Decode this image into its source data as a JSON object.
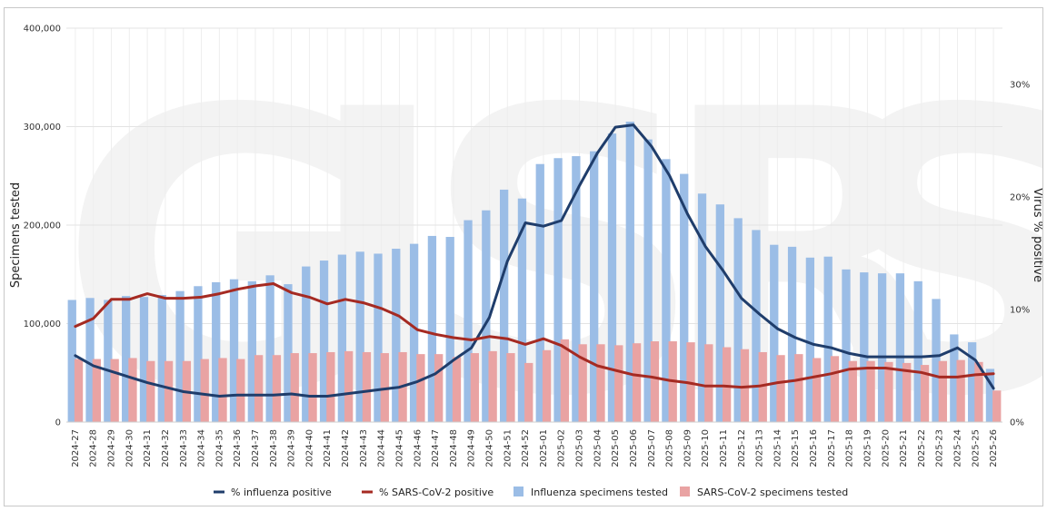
{
  "chart_data": {
    "type": "bar",
    "title": "",
    "ylabel": "Specimens tested",
    "y2label": "Virus % positive",
    "ylim": [
      0,
      400000
    ],
    "y2lim": [
      0,
      35
    ],
    "y_ticks": [
      "0",
      "100,000",
      "200,000",
      "300,000",
      "400,000"
    ],
    "y2_ticks": [
      "0%",
      "10%",
      "20%",
      "30%"
    ],
    "grid": true,
    "legend_position": "bottom",
    "categories": [
      "2024-27",
      "2024-28",
      "2024-29",
      "2024-30",
      "2024-31",
      "2024-32",
      "2024-33",
      "2024-34",
      "2024-35",
      "2024-36",
      "2024-37",
      "2024-38",
      "2024-39",
      "2024-40",
      "2024-41",
      "2024-42",
      "2024-43",
      "2024-44",
      "2024-45",
      "2024-46",
      "2024-47",
      "2024-48",
      "2024-49",
      "2024-50",
      "2024-51",
      "2024-52",
      "2025-01",
      "2025-02",
      "2025-03",
      "2025-04",
      "2025-05",
      "2025-06",
      "2025-07",
      "2025-08",
      "2025-09",
      "2025-10",
      "2025-11",
      "2025-12",
      "2025-13",
      "2025-14",
      "2025-15",
      "2025-16",
      "2025-17",
      "2025-18",
      "2025-19",
      "2025-20",
      "2025-21",
      "2025-22",
      "2025-23",
      "2025-24",
      "2025-25",
      "2025-26"
    ],
    "series": [
      {
        "name": "Influenza specimens tested",
        "kind": "bar",
        "axis": "left",
        "color": "#9bbde6",
        "values": [
          124000,
          126000,
          124000,
          128000,
          127000,
          129000,
          133000,
          138000,
          142000,
          145000,
          143000,
          149000,
          140000,
          158000,
          164000,
          170000,
          173000,
          171000,
          176000,
          181000,
          189000,
          188000,
          205000,
          215000,
          236000,
          227000,
          262000,
          268000,
          270000,
          275000,
          293000,
          305000,
          287000,
          267000,
          252000,
          232000,
          221000,
          207000,
          195000,
          180000,
          178000,
          167000,
          168000,
          155000,
          152000,
          151000,
          151000,
          143000,
          125000,
          89000,
          81000,
          54000
        ]
      },
      {
        "name": "SARS-CoV-2 specimens tested",
        "kind": "bar",
        "axis": "left",
        "color": "#e9a3a3",
        "values": [
          64000,
          64000,
          64000,
          65000,
          62000,
          62000,
          62000,
          64000,
          65000,
          64000,
          68000,
          68000,
          70000,
          70000,
          71000,
          72000,
          71000,
          70000,
          71000,
          69000,
          69000,
          66000,
          70000,
          72000,
          70000,
          60000,
          73000,
          84000,
          79000,
          79000,
          78000,
          80000,
          82000,
          82000,
          81000,
          79000,
          76000,
          74000,
          71000,
          68000,
          69000,
          65000,
          67000,
          62000,
          62000,
          61000,
          60000,
          58000,
          62000,
          63000,
          61000,
          32000
        ]
      },
      {
        "name": "% influenza positive",
        "kind": "line",
        "axis": "right",
        "color": "#1f3d6b",
        "values": [
          5.9,
          5.0,
          4.5,
          4.0,
          3.5,
          3.1,
          2.7,
          2.5,
          2.3,
          2.4,
          2.4,
          2.4,
          2.5,
          2.3,
          2.3,
          2.5,
          2.7,
          2.9,
          3.1,
          3.6,
          4.3,
          5.5,
          6.6,
          9.3,
          14.3,
          17.7,
          17.4,
          17.9,
          21.0,
          23.9,
          26.2,
          26.4,
          24.5,
          21.9,
          18.5,
          15.6,
          13.4,
          11.0,
          9.6,
          8.3,
          7.5,
          6.9,
          6.6,
          6.1,
          5.8,
          5.8,
          5.8,
          5.8,
          5.9,
          6.6,
          5.5,
          3.0
        ]
      },
      {
        "name": "% SARS-CoV-2 positive",
        "kind": "line",
        "axis": "right",
        "color": "#a52a22",
        "values": [
          8.5,
          9.2,
          10.9,
          10.9,
          11.4,
          11.0,
          11.0,
          11.1,
          11.4,
          11.8,
          12.1,
          12.3,
          11.5,
          11.1,
          10.5,
          10.9,
          10.6,
          10.1,
          9.4,
          8.2,
          7.8,
          7.5,
          7.3,
          7.6,
          7.4,
          6.9,
          7.4,
          6.8,
          5.8,
          5.0,
          4.6,
          4.2,
          4.0,
          3.7,
          3.5,
          3.2,
          3.2,
          3.1,
          3.2,
          3.5,
          3.7,
          4.0,
          4.3,
          4.7,
          4.8,
          4.8,
          4.6,
          4.4,
          4.0,
          4.0,
          4.2,
          4.3
        ]
      }
    ]
  }
}
